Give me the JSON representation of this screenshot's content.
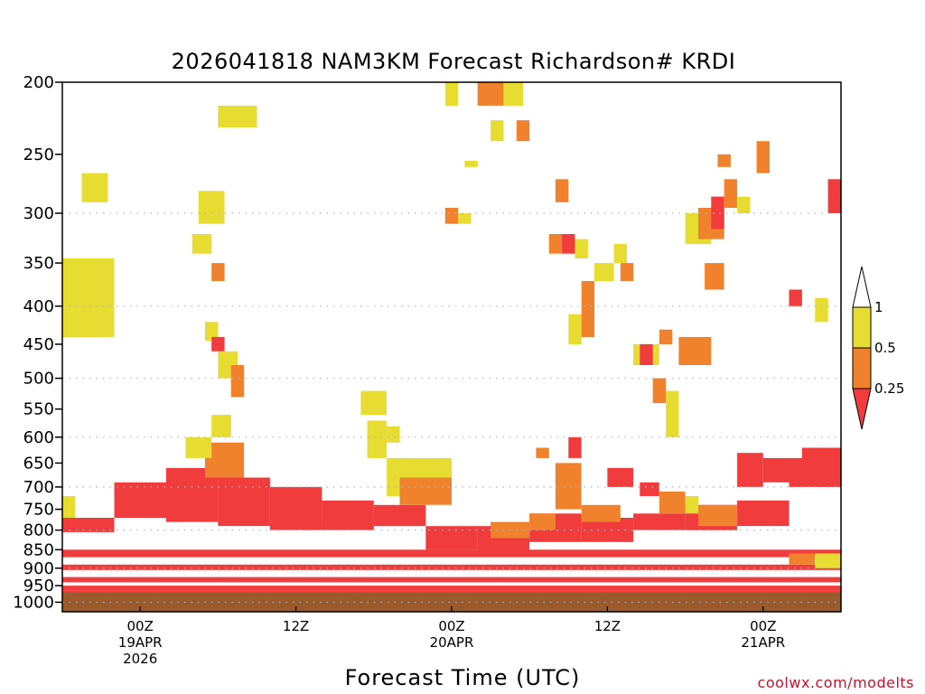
{
  "chart_data": {
    "type": "heatmap",
    "title": "2026041818 NAM3KM Forecast Richardson# KRDI",
    "xlabel": "Forecast Time (UTC)",
    "ylabel": "",
    "y_scale": "log-pressure",
    "y_range_hpa": [
      1030,
      200
    ],
    "y_ticks": [
      "200",
      "250",
      "300",
      "350",
      "400",
      "450",
      "500",
      "550",
      "600",
      "650",
      "700",
      "750",
      "800",
      "850",
      "900",
      "950",
      "1000"
    ],
    "x_range_hours": [
      0,
      60
    ],
    "x_ticks": [
      {
        "hour": 6,
        "lines": [
          "00Z",
          "19APR",
          "2026"
        ]
      },
      {
        "hour": 18,
        "lines": [
          "12Z"
        ]
      },
      {
        "hour": 30,
        "lines": [
          "00Z",
          "20APR"
        ]
      },
      {
        "hour": 42,
        "lines": [
          "12Z"
        ]
      },
      {
        "hour": 54,
        "lines": [
          "00Z",
          "21APR"
        ]
      }
    ],
    "legend": {
      "placement": "right",
      "labels": [
        "1",
        "0.5",
        "0.25"
      ],
      "bins": [
        {
          "range": "0.5-1",
          "color": "#e6dc32"
        },
        {
          "range": "0.25-0.5",
          "color": "#f0822d"
        },
        {
          "range": "<0.25",
          "color": "#f03c3c"
        }
      ]
    },
    "ground_color": "#9a5a2b",
    "ground_pressure_hpa": 970,
    "cells": [
      [
        0,
        1,
        720,
        770,
        "yellow"
      ],
      [
        0,
        4,
        770,
        805,
        "red"
      ],
      [
        4,
        8,
        690,
        770,
        "red"
      ],
      [
        8,
        12,
        660,
        780,
        "red"
      ],
      [
        12,
        16,
        680,
        790,
        "red"
      ],
      [
        16,
        20,
        700,
        800,
        "red"
      ],
      [
        20,
        24,
        730,
        800,
        "red"
      ],
      [
        24,
        28,
        740,
        790,
        "red"
      ],
      [
        28,
        32,
        790,
        850,
        "red"
      ],
      [
        32,
        36,
        790,
        860,
        "red"
      ],
      [
        36,
        40,
        760,
        830,
        "red"
      ],
      [
        40,
        44,
        770,
        830,
        "red"
      ],
      [
        44,
        48,
        760,
        800,
        "red"
      ],
      [
        48,
        52,
        740,
        800,
        "red"
      ],
      [
        52,
        56,
        730,
        790,
        "red"
      ],
      [
        56,
        60,
        640,
        700,
        "red"
      ],
      [
        0,
        60,
        850,
        870,
        "red"
      ],
      [
        0,
        60,
        890,
        905,
        "red"
      ],
      [
        0,
        60,
        925,
        940,
        "red"
      ],
      [
        0,
        60,
        950,
        965,
        "red"
      ],
      [
        0,
        3.5,
        360,
        440,
        "orange"
      ],
      [
        0,
        4,
        345,
        440,
        "yellow"
      ],
      [
        1.5,
        3.5,
        265,
        290,
        "yellow"
      ],
      [
        12,
        13.5,
        220,
        230,
        "orange"
      ],
      [
        12,
        15,
        215,
        230,
        "yellow"
      ],
      [
        10.5,
        12.5,
        280,
        310,
        "yellow"
      ],
      [
        10,
        11.5,
        320,
        340,
        "yellow"
      ],
      [
        11.5,
        12.5,
        350,
        370,
        "orange"
      ],
      [
        11,
        12,
        420,
        445,
        "yellow"
      ],
      [
        11.5,
        12.5,
        440,
        460,
        "red"
      ],
      [
        12,
        13.5,
        460,
        500,
        "yellow"
      ],
      [
        13,
        14,
        480,
        530,
        "orange"
      ],
      [
        11,
        14,
        610,
        680,
        "orange"
      ],
      [
        11.5,
        13,
        560,
        600,
        "yellow"
      ],
      [
        9.5,
        11.5,
        600,
        640,
        "yellow"
      ],
      [
        23,
        25,
        520,
        560,
        "yellow"
      ],
      [
        23.5,
        25,
        570,
        640,
        "yellow"
      ],
      [
        25,
        26,
        580,
        610,
        "yellow"
      ],
      [
        25,
        30,
        640,
        720,
        "yellow"
      ],
      [
        26,
        30,
        680,
        740,
        "orange"
      ],
      [
        29.5,
        30.5,
        200,
        215,
        "yellow"
      ],
      [
        32,
        34,
        200,
        215,
        "orange"
      ],
      [
        34,
        35.5,
        200,
        215,
        "yellow"
      ],
      [
        33,
        34,
        225,
        240,
        "yellow"
      ],
      [
        35,
        36,
        225,
        240,
        "orange"
      ],
      [
        29.5,
        30.5,
        295,
        310,
        "orange"
      ],
      [
        30.5,
        31.5,
        300,
        310,
        "yellow"
      ],
      [
        31,
        32,
        255,
        260,
        "yellow"
      ],
      [
        37.5,
        38.5,
        320,
        340,
        "orange"
      ],
      [
        38.5,
        39.5,
        320,
        340,
        "red"
      ],
      [
        39.5,
        40.5,
        325,
        345,
        "yellow"
      ],
      [
        38,
        39,
        270,
        290,
        "orange"
      ],
      [
        39,
        40,
        410,
        450,
        "yellow"
      ],
      [
        40,
        41,
        370,
        440,
        "orange"
      ],
      [
        41,
        42.5,
        350,
        370,
        "yellow"
      ],
      [
        42.5,
        43.5,
        330,
        350,
        "yellow"
      ],
      [
        43,
        44,
        350,
        370,
        "orange"
      ],
      [
        44,
        46,
        450,
        480,
        "yellow"
      ],
      [
        44.5,
        45.5,
        450,
        480,
        "red"
      ],
      [
        45.5,
        46.5,
        500,
        540,
        "orange"
      ],
      [
        46,
        47,
        430,
        450,
        "orange"
      ],
      [
        46.5,
        47.5,
        520,
        600,
        "yellow"
      ],
      [
        47.5,
        50,
        440,
        480,
        "orange"
      ],
      [
        48,
        50,
        300,
        330,
        "yellow"
      ],
      [
        49,
        51,
        295,
        325,
        "orange"
      ],
      [
        50,
        51,
        285,
        315,
        "red"
      ],
      [
        49.5,
        51,
        350,
        380,
        "orange"
      ],
      [
        50.5,
        51.5,
        250,
        260,
        "orange"
      ],
      [
        51,
        52,
        270,
        295,
        "orange"
      ],
      [
        52,
        53,
        285,
        300,
        "yellow"
      ],
      [
        53.5,
        54.5,
        240,
        265,
        "orange"
      ],
      [
        56,
        57,
        380,
        400,
        "red"
      ],
      [
        58,
        59,
        390,
        420,
        "yellow"
      ],
      [
        59,
        60,
        270,
        300,
        "red"
      ],
      [
        39,
        40,
        600,
        640,
        "red"
      ],
      [
        38,
        40,
        650,
        750,
        "orange"
      ],
      [
        36.5,
        37.5,
        620,
        640,
        "orange"
      ],
      [
        52,
        54,
        630,
        700,
        "red"
      ],
      [
        54,
        56,
        640,
        690,
        "red"
      ],
      [
        57,
        60,
        620,
        680,
        "red"
      ],
      [
        42,
        44,
        660,
        700,
        "red"
      ],
      [
        44.5,
        46,
        690,
        720,
        "red"
      ],
      [
        46,
        48,
        710,
        760,
        "orange"
      ],
      [
        48,
        49,
        720,
        760,
        "yellow"
      ],
      [
        49,
        52,
        740,
        790,
        "orange"
      ],
      [
        40,
        43,
        740,
        780,
        "orange"
      ],
      [
        36,
        38,
        760,
        800,
        "orange"
      ],
      [
        33,
        36,
        780,
        820,
        "orange"
      ],
      [
        56,
        58,
        860,
        890,
        "orange"
      ],
      [
        58,
        60,
        860,
        900,
        "yellow"
      ],
      [
        0,
        60,
        965,
        970,
        "red"
      ]
    ]
  },
  "credit": "coolwx.com/modelts"
}
